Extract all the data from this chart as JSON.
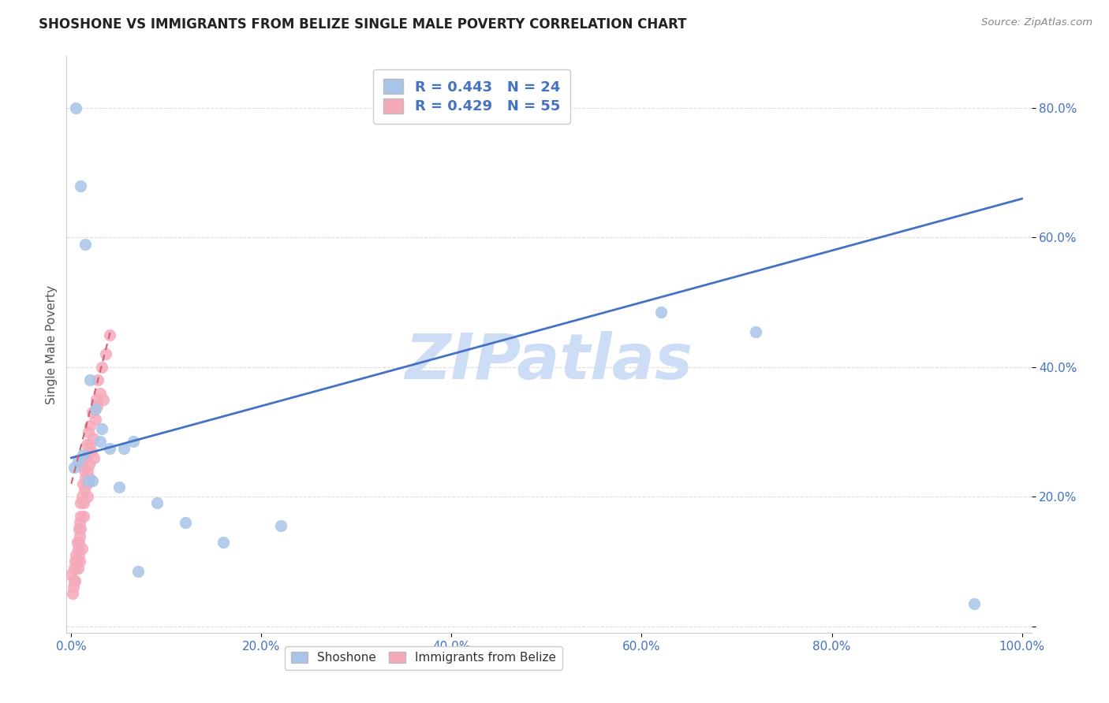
{
  "title": "SHOSHONE VS IMMIGRANTS FROM BELIZE SINGLE MALE POVERTY CORRELATION CHART",
  "source": "Source: ZipAtlas.com",
  "ylabel": "Single Male Poverty",
  "shoshone_x": [
    0.005,
    0.01,
    0.015,
    0.02,
    0.025,
    0.03,
    0.04,
    0.055,
    0.065,
    0.09,
    0.12,
    0.16,
    0.22,
    0.62,
    0.72,
    0.003,
    0.007,
    0.012,
    0.018,
    0.022,
    0.032,
    0.05,
    0.07,
    0.95
  ],
  "shoshone_y": [
    0.8,
    0.68,
    0.59,
    0.38,
    0.335,
    0.285,
    0.275,
    0.275,
    0.285,
    0.19,
    0.16,
    0.13,
    0.155,
    0.485,
    0.455,
    0.245,
    0.255,
    0.265,
    0.225,
    0.225,
    0.305,
    0.215,
    0.085,
    0.035
  ],
  "belize_x": [
    0.0,
    0.001,
    0.002,
    0.003,
    0.003,
    0.004,
    0.004,
    0.005,
    0.005,
    0.006,
    0.006,
    0.007,
    0.007,
    0.008,
    0.008,
    0.008,
    0.009,
    0.009,
    0.009,
    0.01,
    0.01,
    0.01,
    0.011,
    0.011,
    0.012,
    0.012,
    0.013,
    0.013,
    0.014,
    0.014,
    0.015,
    0.015,
    0.016,
    0.016,
    0.017,
    0.017,
    0.018,
    0.018,
    0.019,
    0.019,
    0.02,
    0.02,
    0.021,
    0.022,
    0.023,
    0.024,
    0.025,
    0.026,
    0.027,
    0.028,
    0.03,
    0.032,
    0.034,
    0.036,
    0.04
  ],
  "belize_y": [
    0.08,
    0.05,
    0.06,
    0.09,
    0.07,
    0.07,
    0.1,
    0.09,
    0.11,
    0.1,
    0.13,
    0.12,
    0.09,
    0.13,
    0.11,
    0.15,
    0.1,
    0.14,
    0.16,
    0.15,
    0.17,
    0.19,
    0.12,
    0.2,
    0.22,
    0.25,
    0.19,
    0.17,
    0.24,
    0.21,
    0.23,
    0.26,
    0.22,
    0.28,
    0.2,
    0.24,
    0.27,
    0.3,
    0.23,
    0.25,
    0.28,
    0.31,
    0.27,
    0.33,
    0.29,
    0.26,
    0.32,
    0.35,
    0.34,
    0.38,
    0.36,
    0.4,
    0.35,
    0.42,
    0.45
  ],
  "shoshone_R": 0.443,
  "shoshone_N": 24,
  "belize_R": 0.429,
  "belize_N": 55,
  "shoshone_color": "#a8c4e8",
  "belize_color": "#f5aabb",
  "shoshone_line_color": "#4472c4",
  "belize_line_color": "#d06070",
  "watermark": "ZIPatlas",
  "watermark_color": "#ccddf5",
  "background_color": "#ffffff",
  "grid_color": "#dddddd",
  "tick_color": "#4472c4",
  "axis_label_color": "#555555",
  "xlim": [
    0.0,
    1.0
  ],
  "ylim": [
    0.0,
    0.88
  ],
  "xticks": [
    0.0,
    0.2,
    0.4,
    0.6,
    0.8,
    1.0
  ],
  "xtick_labels": [
    "0.0%",
    "20.0%",
    "40.0%",
    "60.0%",
    "80.0%",
    "100.0%"
  ],
  "yticks": [
    0.0,
    0.2,
    0.4,
    0.6,
    0.8
  ],
  "ytick_labels": [
    "",
    "20.0%",
    "40.0%",
    "60.0%",
    "80.0%"
  ],
  "shoshone_line_x": [
    0.0,
    1.0
  ],
  "shoshone_line_y": [
    0.26,
    0.66
  ],
  "belize_line_x": [
    0.0,
    0.042
  ],
  "belize_line_y": [
    0.22,
    0.46
  ]
}
